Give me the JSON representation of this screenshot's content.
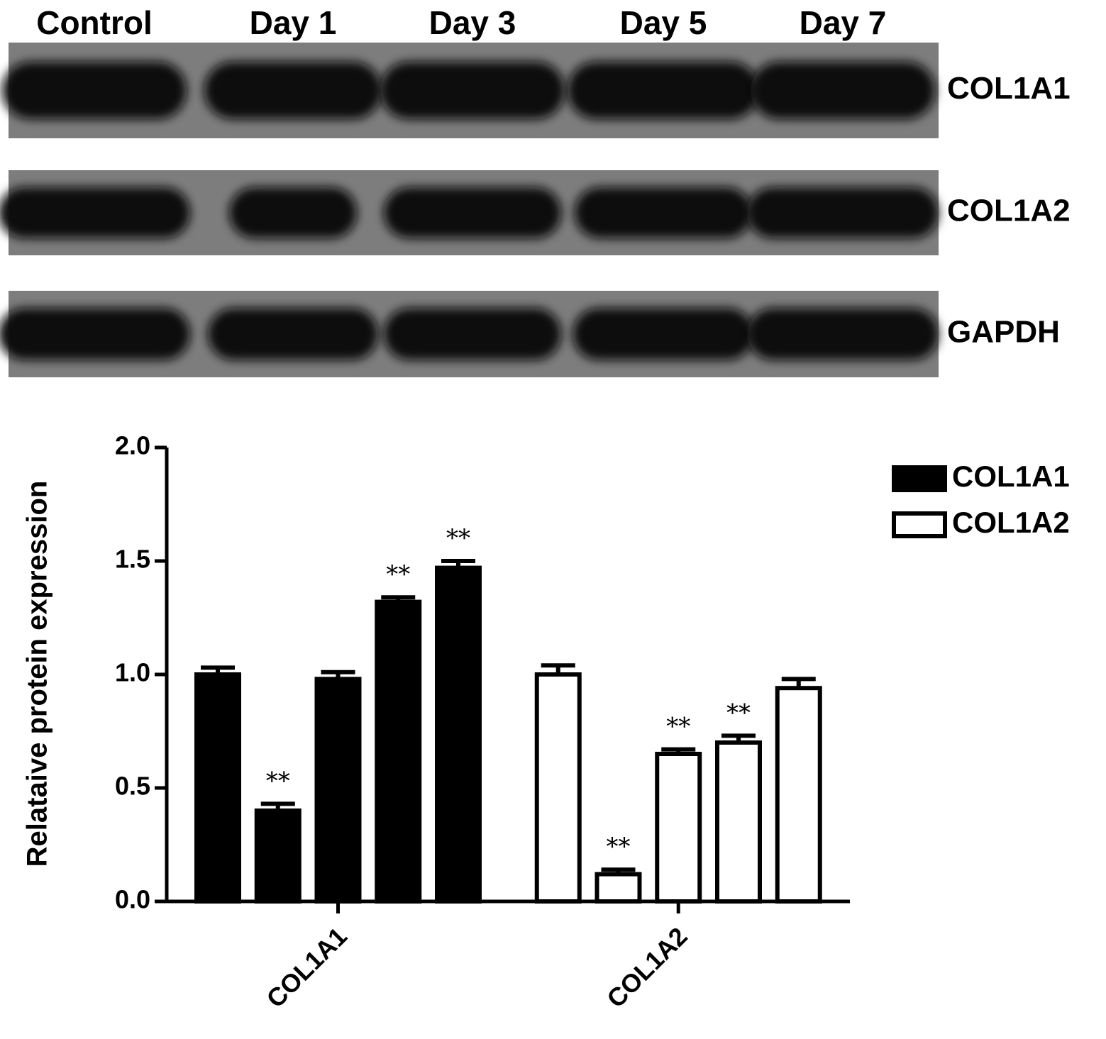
{
  "blot": {
    "lanes": [
      "Control",
      "Day 1",
      "Day 3",
      "Day 5",
      "Day 7"
    ],
    "bands": [
      "COL1A1",
      "COL1A2",
      "GAPDH"
    ]
  },
  "chart_data": {
    "type": "bar",
    "y_label": "Relataive protein expression",
    "categories": [
      null,
      null,
      "COL1A1",
      null,
      null,
      null,
      null,
      "COL1A2",
      null,
      null
    ],
    "series": [
      {
        "name": "COL1A1",
        "color": "#000000",
        "values": [
          1.0,
          0.4,
          0.98,
          1.32,
          1.47,
          null,
          null,
          null,
          null,
          null
        ],
        "errors": [
          0.03,
          0.03,
          0.03,
          0.02,
          0.03,
          null,
          null,
          null,
          null,
          null
        ],
        "annotations": [
          null,
          "**",
          null,
          "**",
          "**",
          null,
          null,
          null,
          null,
          null
        ]
      },
      {
        "name": "COL1A2",
        "color": "#ffffff",
        "values": [
          null,
          null,
          null,
          null,
          null,
          1.0,
          0.12,
          0.65,
          0.7,
          0.94
        ],
        "errors": [
          null,
          null,
          null,
          null,
          null,
          0.04,
          0.02,
          0.02,
          0.03,
          0.04
        ],
        "annotations": [
          null,
          null,
          null,
          null,
          null,
          null,
          "**",
          "**",
          "**",
          null
        ]
      }
    ],
    "ylim": [
      0,
      2
    ],
    "yticks": [
      {
        "value": 0,
        "label": "0.0"
      },
      0.5,
      {
        "value": 1,
        "label": "1.0"
      },
      1.5,
      {
        "value": 2,
        "label": "2.0"
      }
    ],
    "grid": false,
    "legend": "upper right"
  }
}
